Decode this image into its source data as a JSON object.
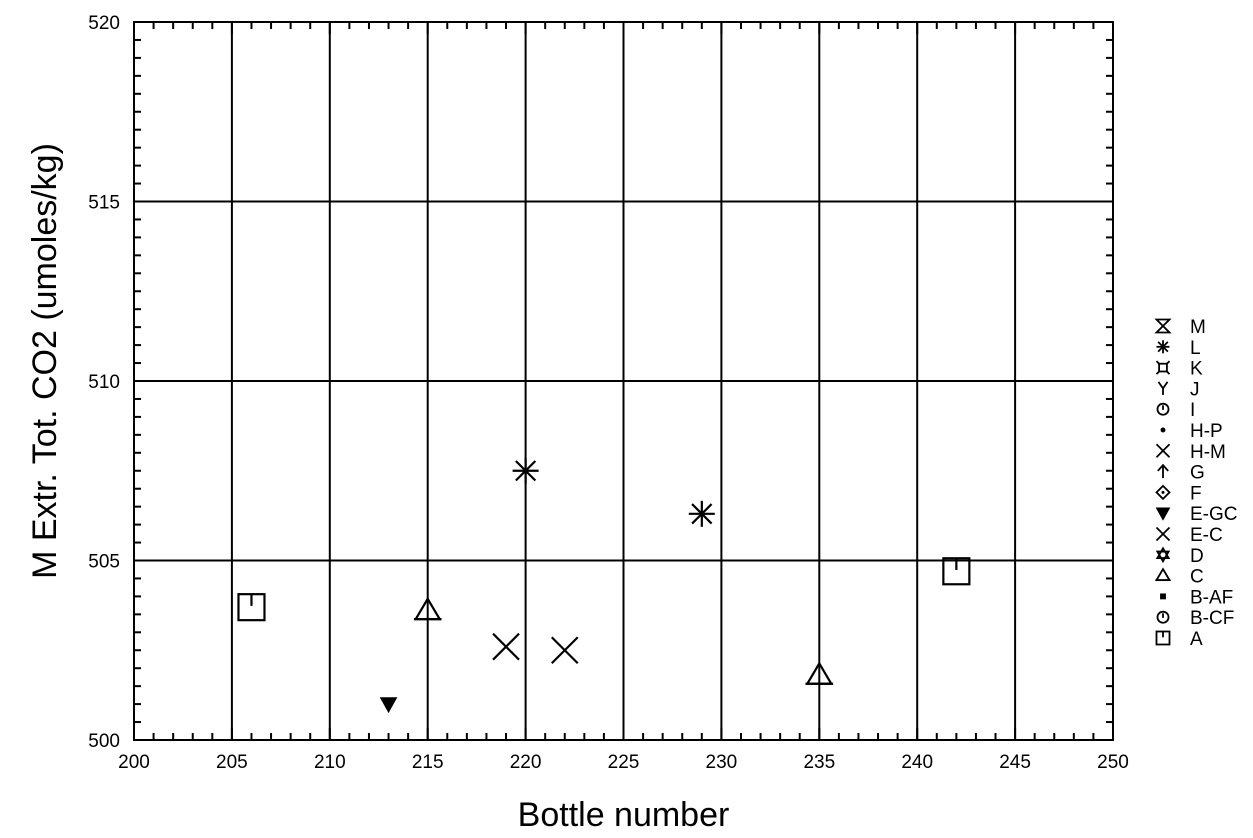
{
  "chart_data": {
    "type": "scatter",
    "xlabel": "Bottle number",
    "ylabel": "M Extr. Tot. CO2 (umoles/kg)",
    "xlim": [
      200,
      250
    ],
    "ylim": [
      500,
      520
    ],
    "x_ticks": [
      "200",
      "205",
      "210",
      "215",
      "220",
      "225",
      "230",
      "235",
      "240",
      "245",
      "250"
    ],
    "y_ticks": [
      "500",
      "505",
      "510",
      "515",
      "520"
    ],
    "grid": true,
    "legend_position": "right",
    "series": [
      {
        "name": "M",
        "symbol": "hourglass",
        "points": []
      },
      {
        "name": "L",
        "symbol": "asterisk",
        "points": [
          {
            "x": 220,
            "y": 507.5
          },
          {
            "x": 229,
            "y": 506.3
          }
        ]
      },
      {
        "name": "K",
        "symbol": "k-box",
        "points": []
      },
      {
        "name": "J",
        "symbol": "y-mark",
        "points": []
      },
      {
        "name": "I",
        "symbol": "circle-bar",
        "points": []
      },
      {
        "name": "H-P",
        "symbol": "dot",
        "points": []
      },
      {
        "name": "H-M",
        "symbol": "x-large",
        "points": [
          {
            "x": 219,
            "y": 502.6
          },
          {
            "x": 222,
            "y": 502.5
          }
        ]
      },
      {
        "name": "G",
        "symbol": "arrow-up",
        "points": []
      },
      {
        "name": "F",
        "symbol": "diamond",
        "points": []
      },
      {
        "name": "E-GC",
        "symbol": "triangle-down-filled",
        "points": [
          {
            "x": 213,
            "y": 501
          }
        ]
      },
      {
        "name": "E-C",
        "symbol": "x-small",
        "points": []
      },
      {
        "name": "D",
        "symbol": "star",
        "points": []
      },
      {
        "name": "C",
        "symbol": "triangle-up",
        "points": [
          {
            "x": 215,
            "y": 503.6
          },
          {
            "x": 235,
            "y": 501.8
          }
        ]
      },
      {
        "name": "B-AF",
        "symbol": "square-filled",
        "points": []
      },
      {
        "name": "B-CF",
        "symbol": "circle-bar",
        "points": []
      },
      {
        "name": "A",
        "symbol": "square-bar",
        "points": [
          {
            "x": 206,
            "y": 503.7
          },
          {
            "x": 242,
            "y": 504.7
          }
        ]
      }
    ]
  }
}
